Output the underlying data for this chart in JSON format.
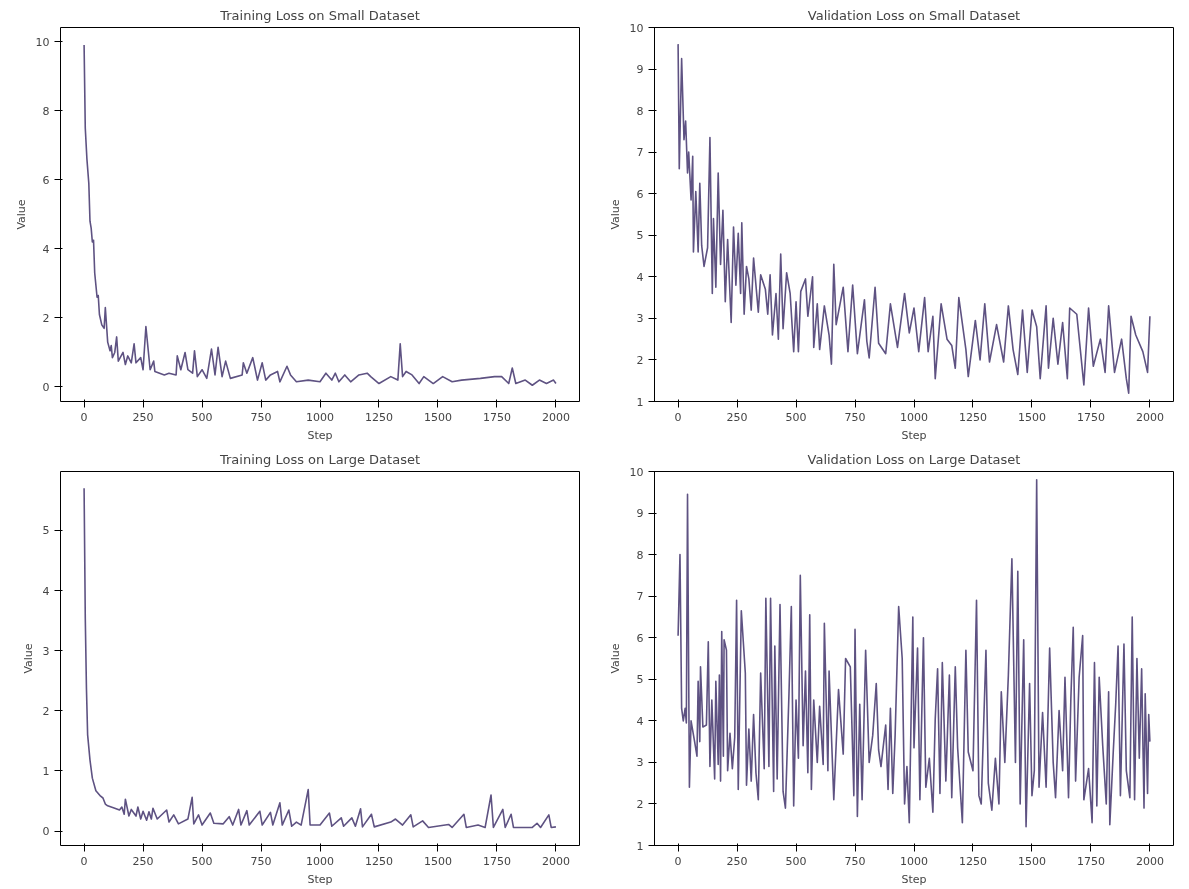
{
  "chart_data": [
    {
      "type": "line",
      "title": "Training Loss on Small Dataset",
      "xlabel": "Step",
      "ylabel": "Value",
      "color": "#5e5282",
      "xlim": [
        -100,
        2100
      ],
      "ylim": [
        -0.42,
        10.41
      ],
      "xticks": [
        0,
        250,
        500,
        750,
        1000,
        1250,
        1500,
        1750,
        2000
      ],
      "yticks": [
        0,
        2,
        4,
        6,
        8,
        10
      ],
      "x": [
        0,
        5,
        12,
        20,
        25,
        30,
        35,
        40,
        45,
        55,
        60,
        65,
        75,
        85,
        90,
        100,
        110,
        115,
        120,
        130,
        138,
        145,
        165,
        175,
        185,
        200,
        212,
        220,
        240,
        250,
        262,
        280,
        295,
        300,
        340,
        360,
        390,
        395,
        410,
        428,
        440,
        460,
        468,
        480,
        500,
        520,
        540,
        555,
        568,
        585,
        600,
        620,
        670,
        675,
        690,
        715,
        735,
        755,
        770,
        790,
        820,
        830,
        860,
        875,
        900,
        950,
        1000,
        1025,
        1050,
        1065,
        1080,
        1105,
        1130,
        1165,
        1200,
        1215,
        1250,
        1300,
        1330,
        1340,
        1350,
        1365,
        1390,
        1420,
        1440,
        1480,
        1520,
        1560,
        1600,
        1680,
        1740,
        1770,
        1800,
        1815,
        1830,
        1870,
        1900,
        1930,
        1960,
        1990,
        2000
      ],
      "values": [
        9.9,
        7.5,
        6.6,
        5.9,
        4.8,
        4.6,
        4.2,
        4.25,
        3.3,
        2.6,
        2.65,
        2.1,
        1.8,
        1.7,
        2.3,
        1.3,
        1.05,
        1.2,
        0.85,
        1.0,
        1.45,
        0.75,
        1.0,
        0.65,
        0.9,
        0.7,
        1.25,
        0.7,
        0.85,
        0.5,
        1.75,
        0.5,
        0.75,
        0.45,
        0.35,
        0.4,
        0.35,
        0.9,
        0.5,
        1.0,
        0.5,
        0.4,
        1.05,
        0.3,
        0.5,
        0.25,
        1.1,
        0.35,
        1.15,
        0.3,
        0.75,
        0.25,
        0.35,
        0.7,
        0.4,
        0.85,
        0.2,
        0.7,
        0.2,
        0.35,
        0.45,
        0.15,
        0.6,
        0.35,
        0.15,
        0.2,
        0.15,
        0.4,
        0.2,
        0.4,
        0.15,
        0.35,
        0.15,
        0.35,
        0.4,
        0.3,
        0.1,
        0.3,
        0.2,
        1.25,
        0.3,
        0.45,
        0.35,
        0.1,
        0.3,
        0.1,
        0.3,
        0.15,
        0.2,
        0.25,
        0.3,
        0.3,
        0.1,
        0.55,
        0.1,
        0.2,
        0.05,
        0.2,
        0.1,
        0.2,
        0.1
      ]
    },
    {
      "type": "line",
      "title": "Validation Loss on Small Dataset",
      "xlabel": "Step",
      "ylabel": "Value",
      "color": "#5e5282",
      "xlim": [
        -100,
        2100
      ],
      "ylim": [
        1,
        10
      ],
      "xticks": [
        0,
        250,
        500,
        750,
        1000,
        1250,
        1500,
        1750,
        2000
      ],
      "yticks": [
        1,
        2,
        3,
        4,
        5,
        6,
        7,
        8,
        9,
        10
      ],
      "x": [
        0,
        5,
        15,
        25,
        32,
        40,
        45,
        55,
        62,
        65,
        75,
        85,
        92,
        100,
        110,
        125,
        135,
        145,
        150,
        160,
        170,
        180,
        190,
        200,
        210,
        225,
        235,
        245,
        255,
        265,
        270,
        280,
        290,
        300,
        310,
        320,
        340,
        350,
        370,
        380,
        390,
        400,
        415,
        425,
        435,
        445,
        460,
        475,
        490,
        500,
        510,
        520,
        540,
        550,
        570,
        575,
        590,
        600,
        620,
        640,
        650,
        660,
        670,
        700,
        720,
        740,
        760,
        790,
        800,
        810,
        835,
        850,
        880,
        900,
        930,
        960,
        980,
        1000,
        1020,
        1045,
        1060,
        1080,
        1090,
        1115,
        1140,
        1160,
        1175,
        1190,
        1220,
        1230,
        1260,
        1280,
        1300,
        1320,
        1350,
        1380,
        1400,
        1420,
        1440,
        1460,
        1480,
        1500,
        1520,
        1535,
        1560,
        1570,
        1590,
        1610,
        1630,
        1650,
        1660,
        1690,
        1720,
        1740,
        1760,
        1790,
        1810,
        1825,
        1850,
        1880,
        1900,
        1910,
        1920,
        1940,
        1970,
        1990,
        2000
      ],
      "values": [
        9.6,
        6.6,
        9.25,
        7.3,
        7.75,
        6.5,
        7.0,
        5.85,
        6.9,
        4.6,
        6.05,
        4.6,
        6.25,
        4.75,
        4.25,
        4.7,
        7.35,
        3.6,
        5.4,
        3.75,
        6.5,
        4.3,
        5.6,
        3.4,
        4.9,
        2.9,
        5.2,
        3.8,
        5.05,
        3.6,
        5.3,
        3.1,
        4.25,
        3.95,
        3.2,
        4.45,
        3.15,
        4.05,
        3.7,
        3.1,
        4.05,
        2.6,
        3.6,
        2.5,
        4.55,
        2.75,
        4.1,
        3.6,
        2.2,
        3.4,
        2.2,
        3.65,
        3.95,
        3.05,
        4.0,
        2.3,
        3.35,
        2.25,
        3.3,
        2.6,
        1.9,
        4.3,
        2.85,
        3.75,
        2.2,
        3.8,
        2.15,
        3.45,
        2.45,
        2.05,
        3.75,
        2.4,
        2.15,
        3.35,
        2.3,
        3.6,
        2.65,
        3.25,
        2.2,
        3.5,
        2.2,
        3.05,
        1.55,
        3.35,
        2.5,
        2.35,
        1.8,
        3.5,
        2.25,
        1.6,
        2.95,
        2.0,
        3.35,
        1.95,
        2.85,
        1.95,
        3.3,
        2.25,
        1.65,
        3.2,
        1.7,
        3.2,
        2.8,
        1.55,
        3.3,
        1.8,
        3.0,
        1.9,
        2.9,
        1.55,
        3.25,
        3.1,
        1.4,
        3.25,
        1.85,
        2.5,
        1.7,
        3.3,
        1.7,
        2.5,
        1.55,
        1.2,
        3.05,
        2.6,
        2.2,
        1.7,
        3.05
      ]
    },
    {
      "type": "line",
      "title": "Training Loss on Large Dataset",
      "xlabel": "Step",
      "ylabel": "Value",
      "color": "#5e5282",
      "xlim": [
        -100,
        2100
      ],
      "ylim": [
        -0.24,
        5.98
      ],
      "xticks": [
        0,
        250,
        500,
        750,
        1000,
        1250,
        1500,
        1750,
        2000
      ],
      "yticks": [
        0,
        1,
        2,
        3,
        4,
        5
      ],
      "x": [
        0,
        5,
        10,
        15,
        25,
        35,
        50,
        70,
        80,
        90,
        100,
        130,
        150,
        160,
        170,
        175,
        190,
        200,
        220,
        228,
        240,
        250,
        265,
        275,
        285,
        292,
        310,
        350,
        360,
        380,
        400,
        440,
        458,
        465,
        485,
        500,
        535,
        550,
        590,
        615,
        630,
        655,
        665,
        690,
        700,
        745,
        755,
        790,
        800,
        830,
        840,
        868,
        880,
        900,
        920,
        950,
        958,
        1000,
        1040,
        1050,
        1090,
        1100,
        1135,
        1150,
        1172,
        1180,
        1218,
        1230,
        1300,
        1320,
        1350,
        1385,
        1395,
        1435,
        1460,
        1545,
        1560,
        1610,
        1620,
        1670,
        1700,
        1725,
        1735,
        1775,
        1785,
        1810,
        1820,
        1900,
        1920,
        1935,
        1970,
        1980,
        2000
      ],
      "values": [
        5.7,
        3.55,
        2.37,
        1.6,
        1.18,
        0.88,
        0.67,
        0.58,
        0.55,
        0.45,
        0.42,
        0.38,
        0.35,
        0.4,
        0.28,
        0.53,
        0.25,
        0.36,
        0.25,
        0.4,
        0.2,
        0.33,
        0.18,
        0.32,
        0.2,
        0.38,
        0.2,
        0.35,
        0.15,
        0.27,
        0.12,
        0.2,
        0.56,
        0.12,
        0.27,
        0.1,
        0.3,
        0.13,
        0.12,
        0.24,
        0.1,
        0.36,
        0.1,
        0.34,
        0.1,
        0.33,
        0.1,
        0.31,
        0.1,
        0.47,
        0.1,
        0.35,
        0.08,
        0.15,
        0.1,
        0.69,
        0.1,
        0.1,
        0.3,
        0.08,
        0.22,
        0.08,
        0.22,
        0.08,
        0.37,
        0.07,
        0.28,
        0.07,
        0.15,
        0.2,
        0.1,
        0.27,
        0.07,
        0.17,
        0.06,
        0.11,
        0.06,
        0.28,
        0.06,
        0.1,
        0.06,
        0.6,
        0.06,
        0.36,
        0.06,
        0.28,
        0.06,
        0.06,
        0.13,
        0.06,
        0.27,
        0.06,
        0.07
      ]
    },
    {
      "type": "line",
      "title": "Validation Loss on Large Dataset",
      "xlabel": "Step",
      "ylabel": "Value",
      "color": "#5e5282",
      "xlim": [
        -100,
        2100
      ],
      "ylim": [
        1,
        10
      ],
      "xticks": [
        0,
        250,
        500,
        750,
        1000,
        1250,
        1500,
        1750,
        2000
      ],
      "yticks": [
        1,
        2,
        3,
        4,
        5,
        6,
        7,
        8,
        9,
        10
      ],
      "x": [
        0,
        8,
        15,
        22,
        30,
        35,
        40,
        48,
        55,
        70,
        80,
        85,
        92,
        95,
        105,
        120,
        128,
        135,
        143,
        155,
        160,
        170,
        175,
        180,
        185,
        192,
        195,
        205,
        210,
        220,
        230,
        240,
        248,
        255,
        268,
        285,
        290,
        300,
        310,
        320,
        330,
        340,
        350,
        365,
        372,
        385,
        392,
        405,
        410,
        420,
        432,
        445,
        455,
        470,
        480,
        490,
        500,
        510,
        518,
        530,
        540,
        550,
        558,
        565,
        575,
        590,
        600,
        615,
        620,
        635,
        640,
        660,
        680,
        700,
        710,
        730,
        745,
        750,
        760,
        770,
        780,
        795,
        810,
        825,
        840,
        850,
        860,
        880,
        890,
        900,
        910,
        920,
        935,
        950,
        960,
        970,
        980,
        995,
        1000,
        1015,
        1025,
        1040,
        1050,
        1065,
        1080,
        1090,
        1100,
        1110,
        1120,
        1135,
        1150,
        1160,
        1175,
        1185,
        1200,
        1205,
        1220,
        1230,
        1250,
        1265,
        1275,
        1285,
        1305,
        1315,
        1330,
        1345,
        1360,
        1370,
        1385,
        1400,
        1415,
        1430,
        1440,
        1450,
        1465,
        1475,
        1490,
        1500,
        1510,
        1520,
        1530,
        1545,
        1560,
        1575,
        1590,
        1600,
        1615,
        1630,
        1640,
        1655,
        1665,
        1675,
        1685,
        1700,
        1715,
        1720,
        1740,
        1755,
        1765,
        1775,
        1785,
        1800,
        1815,
        1825,
        1830,
        1845,
        1855,
        1865,
        1875,
        1890,
        1900,
        1915,
        1925,
        1935,
        1945,
        1955,
        1965,
        1975,
        1980,
        1990,
        1995,
        2000
      ],
      "values": [
        6.05,
        8.0,
        4.3,
        4.0,
        4.3,
        3.95,
        9.45,
        2.4,
        4.0,
        3.5,
        3.15,
        4.95,
        3.5,
        5.3,
        3.85,
        3.9,
        5.9,
        2.9,
        4.5,
        2.6,
        4.95,
        2.95,
        5.1,
        2.55,
        6.15,
        3.15,
        5.95,
        5.7,
        2.8,
        3.7,
        2.85,
        3.6,
        6.9,
        2.35,
        6.65,
        5.15,
        2.45,
        3.8,
        2.55,
        4.15,
        2.75,
        2.1,
        5.15,
        2.85,
        6.95,
        2.9,
        6.95,
        2.3,
        5.8,
        2.6,
        6.8,
        2.3,
        1.9,
        4.65,
        6.75,
        1.95,
        4.5,
        3.1,
        7.5,
        3.4,
        5.2,
        2.75,
        6.55,
        2.35,
        4.5,
        3.0,
        4.35,
        2.95,
        6.35,
        2.8,
        5.2,
        2.1,
        4.75,
        3.2,
        5.5,
        5.3,
        2.2,
        6.2,
        1.7,
        4.4,
        2.1,
        5.7,
        3.0,
        3.65,
        4.9,
        3.3,
        2.9,
        3.9,
        2.35,
        4.3,
        2.25,
        3.65,
        6.75,
        5.5,
        2.0,
        2.9,
        1.55,
        6.5,
        3.35,
        5.75,
        2.1,
        6.0,
        2.4,
        3.1,
        1.8,
        4.05,
        5.25,
        2.25,
        5.4,
        2.55,
        5.1,
        2.15,
        5.3,
        3.35,
        2.0,
        1.55,
        5.7,
        3.25,
        2.8,
        6.9,
        2.2,
        2.0,
        5.7,
        2.5,
        1.85,
        3.1,
        2.0,
        4.7,
        3.0,
        5.1,
        7.9,
        3.0,
        7.6,
        2.0,
        5.95,
        1.45,
        4.9,
        2.2,
        2.8,
        9.8,
        2.4,
        4.2,
        2.4,
        5.75,
        3.0,
        2.15,
        4.25,
        2.8,
        5.05,
        2.15,
        4.55,
        6.25,
        2.55,
        5.05,
        6.05,
        2.1,
        2.85,
        1.55,
        5.4,
        1.95,
        5.05,
        3.4,
        2.0,
        4.7,
        1.5,
        3.3,
        4.4,
        5.8,
        2.2,
        5.85,
        2.8,
        2.15,
        6.5,
        2.1,
        5.5,
        3.1,
        5.25,
        1.9,
        4.65,
        2.25,
        4.15,
        3.5
      ]
    }
  ]
}
